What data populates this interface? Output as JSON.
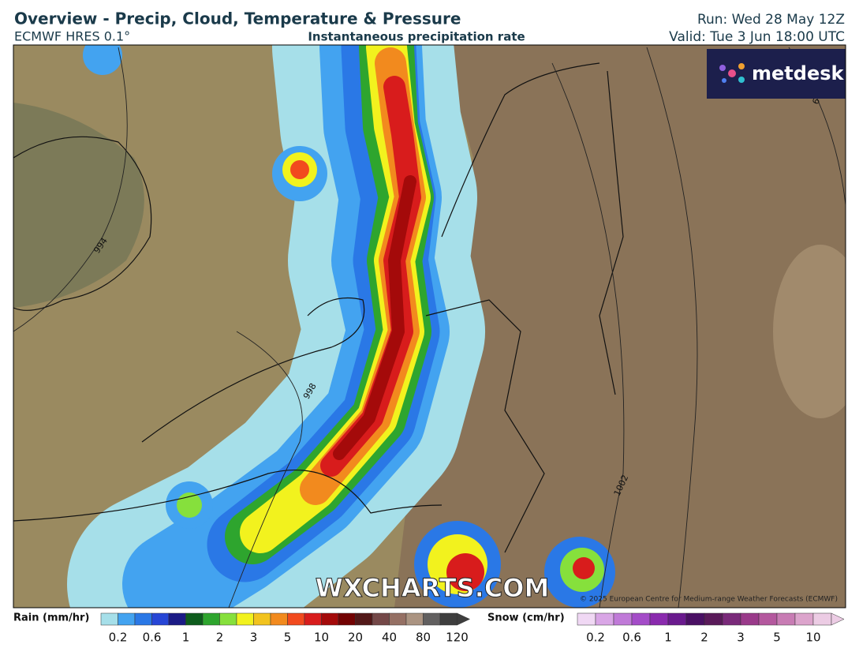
{
  "header": {
    "title": "Overview - Precip, Cloud, Temperature & Pressure",
    "model": "ECMWF HRES 0.1°",
    "field": "Instantaneous precipitation rate",
    "run": "Run: Wed 28 May 12Z",
    "valid": "Valid: Tue 3 Jun 18:00 UTC"
  },
  "map": {
    "logo": "metdesk",
    "watermark": "WXCHARTS.COM",
    "copyright": "© 2025 European Centre for Medium-range Weather Forecasts (ECMWF)",
    "isobar_labels": [
      "994",
      "998",
      "1002",
      "6"
    ]
  },
  "legends": [
    {
      "label": "Rain (mm/hr)",
      "ticks": [
        "0.2",
        "0.6",
        "1",
        "2",
        "3",
        "5",
        "10",
        "20",
        "40",
        "80",
        "120"
      ],
      "colors": [
        "#a6dfe9",
        "#43a3f0",
        "#2a78e6",
        "#2746d6",
        "#1b1b86",
        "#0d5c1c",
        "#2ea52e",
        "#86e03c",
        "#f2f21e",
        "#f2c31e",
        "#f28a1e",
        "#f24a1e",
        "#d81c1c",
        "#a40a0a",
        "#720202",
        "#521818",
        "#744848",
        "#957064",
        "#ab9482",
        "#626060",
        "#3e3e3e"
      ]
    },
    {
      "label": "Snow (cm/hr)",
      "ticks": [
        "0.2",
        "0.6",
        "1",
        "2",
        "3",
        "5",
        "10"
      ],
      "colors": [
        "#f0d8f4",
        "#d9a6e6",
        "#c07ad8",
        "#a44cc8",
        "#8a2aae",
        "#6a1a8e",
        "#4a1064",
        "#5a1a5a",
        "#7a2a7a",
        "#9a3a8a",
        "#b4589e",
        "#c87cb4",
        "#dca4cc",
        "#eccce4"
      ]
    }
  ]
}
